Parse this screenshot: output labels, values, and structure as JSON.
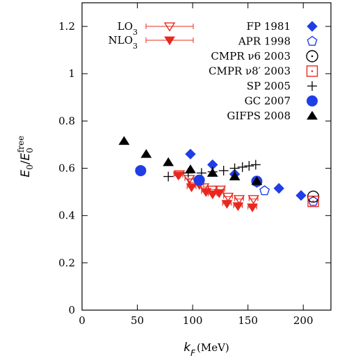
{
  "chart_data": {
    "type": "scatter",
    "xlabel": "k_F (MeV)",
    "ylabel": "E_0/E_0^free",
    "xlabel_parts": {
      "main": "k",
      "sub": "F",
      "unit": "(MeV)"
    },
    "ylabel_parts": {
      "num": "E",
      "num_sub": "0",
      "den": "E",
      "den_sub": "0",
      "den_sup": "free"
    },
    "xlim": [
      0,
      225
    ],
    "ylim": [
      0,
      1.3
    ],
    "x_ticks": [
      0,
      50,
      100,
      150,
      200
    ],
    "y_ticks": [
      0,
      0.2,
      0.4,
      0.6,
      0.8,
      1,
      1.2
    ],
    "x_tick_labels": [
      "0",
      "50",
      "100",
      "150",
      "200"
    ],
    "y_tick_labels": [
      "0",
      "0.2",
      "0.4",
      "0.6",
      "0.8",
      "1",
      "1.2"
    ],
    "grid": false,
    "legend_position": "top",
    "series": [
      {
        "name": "LO₃",
        "marker": "triangle-down-open",
        "color": "#e8281e",
        "error_bars": true,
        "points": [
          [
            88,
            0.575
          ],
          [
            97,
            0.555
          ],
          [
            100,
            0.54
          ],
          [
            110,
            0.52
          ],
          [
            118,
            0.51
          ],
          [
            125,
            0.51
          ],
          [
            132,
            0.48
          ],
          [
            142,
            0.47
          ],
          [
            155,
            0.47
          ]
        ],
        "xerr": [
          4,
          4,
          4,
          4,
          4,
          4,
          4,
          4,
          4
        ]
      },
      {
        "name": "NLO₃",
        "marker": "triangle-down-filled",
        "color": "#e8281e",
        "error_bars": true,
        "points": [
          [
            87,
            0.57
          ],
          [
            99,
            0.52
          ],
          [
            106,
            0.53
          ],
          [
            112,
            0.5
          ],
          [
            118,
            0.49
          ],
          [
            124,
            0.495
          ],
          [
            131,
            0.45
          ],
          [
            141,
            0.44
          ],
          [
            154,
            0.435
          ]
        ],
        "xerr": [
          4,
          4,
          4,
          4,
          4,
          4,
          4,
          4,
          4
        ]
      },
      {
        "name": "FP 1981",
        "marker": "diamond-filled",
        "color": "#1f3ee6",
        "points": [
          [
            98,
            0.66
          ],
          [
            118,
            0.615
          ],
          [
            138,
            0.575
          ],
          [
            158,
            0.54
          ],
          [
            178,
            0.515
          ],
          [
            198,
            0.485
          ]
        ]
      },
      {
        "name": "APR 1998",
        "marker": "pentagon-open",
        "color": "#1f3ee6",
        "points": [
          [
            165,
            0.505
          ],
          [
            209,
            0.46
          ]
        ]
      },
      {
        "name": "CMPR ν6 2003",
        "marker": "circle-dot-open",
        "color": "#000000",
        "points": [
          [
            209,
            0.48
          ]
        ]
      },
      {
        "name": "CMPR ν8′ 2003",
        "marker": "square-dot-open",
        "color": "#e8281e",
        "points": [
          [
            209,
            0.46
          ]
        ]
      },
      {
        "name": "SP 2005",
        "marker": "plus",
        "color": "#000000",
        "points": [
          [
            78,
            0.565
          ],
          [
            96,
            0.58
          ],
          [
            108,
            0.58
          ],
          [
            118,
            0.585
          ],
          [
            128,
            0.59
          ],
          [
            138,
            0.6
          ],
          [
            145,
            0.605
          ],
          [
            151,
            0.61
          ],
          [
            157,
            0.615
          ]
        ]
      },
      {
        "name": "GC 2007",
        "marker": "circle-filled",
        "color": "#1f3ee6",
        "points": [
          [
            53,
            0.59
          ],
          [
            106,
            0.55
          ],
          [
            158,
            0.545
          ]
        ]
      },
      {
        "name": "GIFPS 2008",
        "marker": "triangle-up-filled",
        "color": "#000000",
        "points": [
          [
            38,
            0.715
          ],
          [
            58,
            0.66
          ],
          [
            78,
            0.625
          ],
          [
            98,
            0.595
          ],
          [
            118,
            0.58
          ],
          [
            138,
            0.565
          ],
          [
            158,
            0.545
          ]
        ]
      }
    ]
  }
}
